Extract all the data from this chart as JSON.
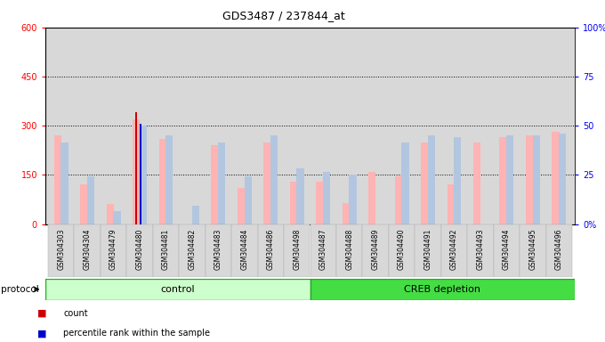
{
  "title": "GDS3487 / 237844_at",
  "samples": [
    "GSM304303",
    "GSM304304",
    "GSM304479",
    "GSM304480",
    "GSM304481",
    "GSM304482",
    "GSM304483",
    "GSM304484",
    "GSM304486",
    "GSM304498",
    "GSM304487",
    "GSM304488",
    "GSM304489",
    "GSM304490",
    "GSM304491",
    "GSM304492",
    "GSM304493",
    "GSM304494",
    "GSM304495",
    "GSM304496"
  ],
  "value_absent": [
    270,
    120,
    60,
    320,
    260,
    0,
    240,
    110,
    250,
    130,
    130,
    65,
    160,
    145,
    250,
    120,
    250,
    265,
    270,
    280
  ],
  "rank_absent": [
    250,
    145,
    40,
    300,
    270,
    55,
    250,
    145,
    270,
    170,
    160,
    150,
    0,
    250,
    270,
    265,
    0,
    270,
    270,
    275
  ],
  "count": [
    0,
    0,
    0,
    340,
    0,
    0,
    0,
    0,
    0,
    0,
    0,
    0,
    0,
    0,
    0,
    0,
    0,
    0,
    0,
    0
  ],
  "percentile": [
    0,
    0,
    0,
    305,
    0,
    0,
    0,
    0,
    0,
    0,
    0,
    0,
    0,
    0,
    0,
    0,
    0,
    0,
    0,
    0
  ],
  "n_control": 10,
  "n_total": 20,
  "ylim_left": [
    0,
    600
  ],
  "ylim_right": [
    0,
    100
  ],
  "yticks_left": [
    0,
    150,
    300,
    450,
    600
  ],
  "yticks_right": [
    0,
    25,
    50,
    75,
    100
  ],
  "ytick_labels_left": [
    "0",
    "150",
    "300",
    "450",
    "600"
  ],
  "ytick_labels_right": [
    "0%",
    "25",
    "50",
    "75",
    "100%"
  ],
  "plot_bg": "#d8d8d8",
  "bar_color_value": "#ffb3b3",
  "bar_color_rank": "#b3c6e0",
  "count_color": "#cc0000",
  "percentile_color": "#0000cc",
  "control_color": "#ccffcc",
  "creb_color": "#44dd44",
  "control_label": "control",
  "creb_label": "CREB depletion",
  "protocol_label": "protocol",
  "title_fontsize": 9,
  "tick_fontsize": 7,
  "label_fontsize": 7.5
}
